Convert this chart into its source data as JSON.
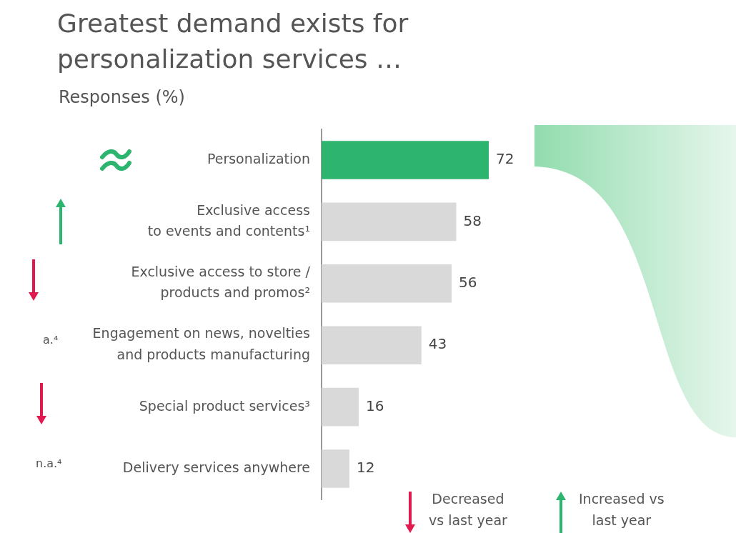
{
  "chart_data": {
    "type": "bar",
    "orientation": "horizontal",
    "title": "Greatest demand exists for\npersonalization services …",
    "subtitle": "Responses (%)",
    "categories": [
      "Personalization",
      "Exclusive access\nto events and contents¹",
      "Exclusive access to store /\nproducts and promos²",
      "Engagement on news, novelties\nand products manufacturing",
      "Special product services³",
      "Delivery services anywhere"
    ],
    "values": [
      72,
      58,
      56,
      43,
      16,
      12
    ],
    "colors": [
      "#2db46e",
      "#d9d9d9",
      "#d9d9d9",
      "#d9d9d9",
      "#d9d9d9",
      "#d9d9d9"
    ],
    "data_labels": true,
    "grid": false,
    "legend": false,
    "annotations": [
      "a.⁴",
      "n.a.⁴",
      "Decreased\nvs last year",
      "Increased vs\nlast year"
    ]
  }
}
